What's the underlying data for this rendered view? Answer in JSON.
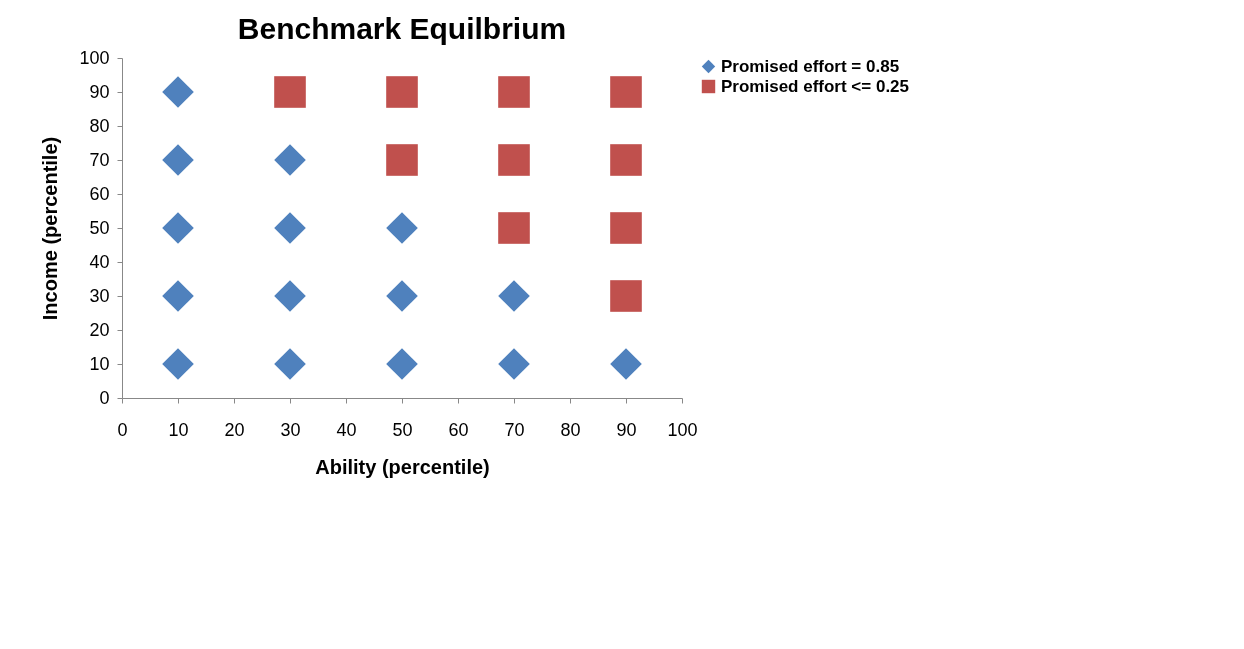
{
  "chart_data": {
    "type": "scatter",
    "title": "Benchmark Equilbrium",
    "xlabel": "Ability (percentile)",
    "ylabel": "Income (percentile)",
    "xlim": [
      0,
      100
    ],
    "xticks": [
      0,
      10,
      20,
      30,
      40,
      50,
      60,
      70,
      80,
      90,
      100
    ],
    "ylim": [
      0,
      100
    ],
    "yticks": [
      0,
      10,
      20,
      30,
      40,
      50,
      60,
      70,
      80,
      90,
      100
    ],
    "grid": false,
    "legend": "right",
    "series": [
      {
        "name": "Promised effort = 0.85",
        "color": "#4f81bd",
        "marker": "diamond",
        "x": [
          10,
          10,
          10,
          10,
          10,
          30,
          30,
          30,
          30,
          50,
          50,
          50,
          70,
          70,
          90
        ],
        "values": [
          10,
          30,
          50,
          70,
          90,
          10,
          30,
          50,
          70,
          10,
          30,
          50,
          10,
          30,
          10
        ]
      },
      {
        "name": "Promised effort <= 0.25",
        "color": "#c0504d",
        "marker": "square",
        "x": [
          30,
          50,
          50,
          70,
          70,
          70,
          90,
          90,
          90,
          90
        ],
        "values": [
          90,
          90,
          70,
          90,
          70,
          50,
          90,
          70,
          50,
          30
        ]
      }
    ]
  }
}
